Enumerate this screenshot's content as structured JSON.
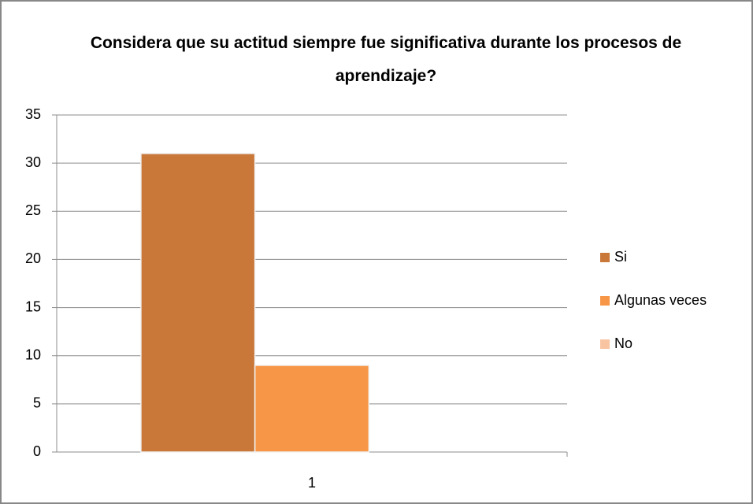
{
  "chart_data": {
    "type": "bar",
    "title": "Considera que su actitud siempre fue significativa durante los procesos de aprendizaje?",
    "categories": [
      "1"
    ],
    "series": [
      {
        "name": "Si",
        "color": "#c9783a",
        "values": [
          31
        ]
      },
      {
        "name": "Algunas veces",
        "color": "#f79646",
        "values": [
          9
        ]
      },
      {
        "name": "No",
        "color": "#f9c4a2",
        "values": [
          0
        ]
      }
    ],
    "ylim": [
      0,
      35
    ],
    "yticks": [
      0,
      5,
      10,
      15,
      20,
      25,
      30,
      35
    ],
    "grid": true,
    "legend": "right"
  }
}
